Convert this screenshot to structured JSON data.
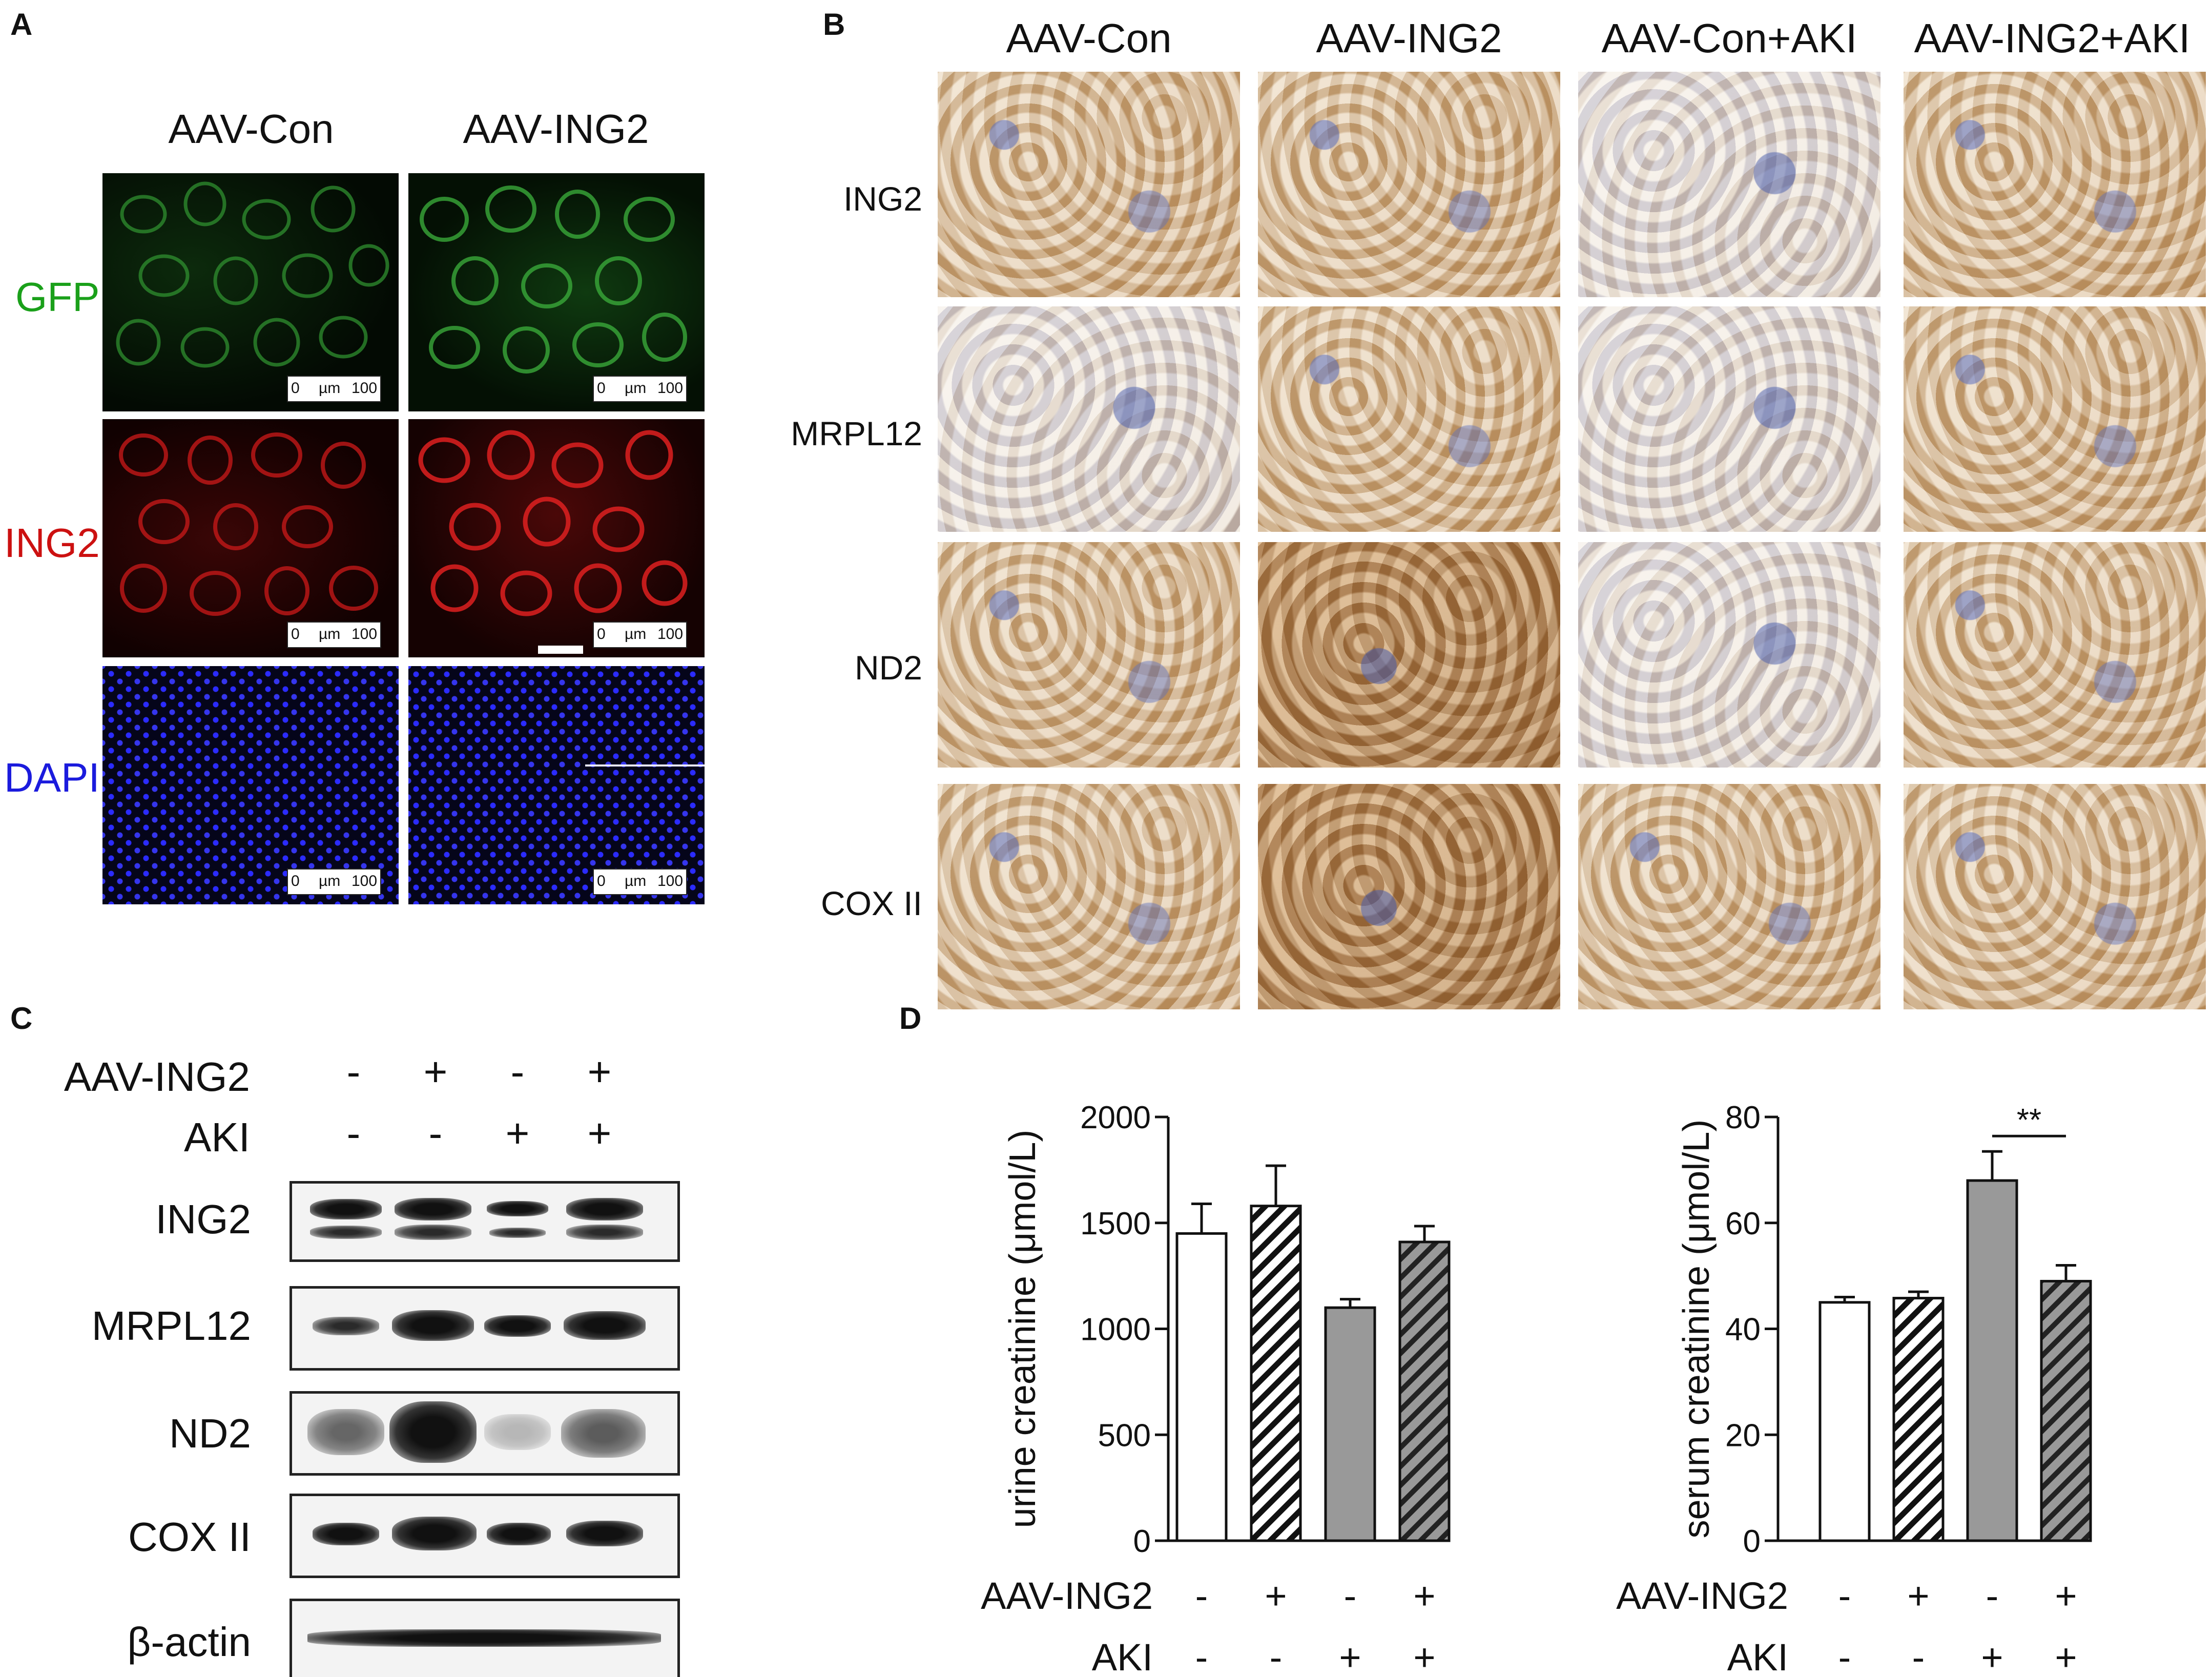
{
  "panel_A": {
    "letter": "A",
    "columns": [
      "AAV-Con",
      "AAV-ING2"
    ],
    "rows": [
      {
        "label": "GFP",
        "color": "#1aa01a"
      },
      {
        "label": "ING2",
        "color": "#cc1111"
      },
      {
        "label": "DAPI",
        "color": "#1b1bdd"
      }
    ],
    "scale_bar": {
      "start": "0",
      "unit": "µm",
      "end": "100"
    }
  },
  "panel_B": {
    "letter": "B",
    "columns": [
      "AAV-Con",
      "AAV-ING2",
      "AAV-Con+AKI",
      "AAV-ING2+AKI"
    ],
    "rows": [
      "ING2",
      "MRPL12",
      "ND2",
      "COX II"
    ]
  },
  "panel_C": {
    "letter": "C",
    "treatment_rows": [
      {
        "label": "AAV-ING2",
        "signs": [
          "-",
          "+",
          "-",
          "+"
        ]
      },
      {
        "label": "AKI",
        "signs": [
          "-",
          "-",
          "+",
          "+"
        ]
      }
    ],
    "blots": [
      "ING2",
      "MRPL12",
      "ND2",
      "COX II",
      "β-actin"
    ]
  },
  "panel_D": {
    "letter": "D",
    "significance": "**"
  },
  "chart_data": [
    {
      "type": "bar",
      "ylabel": "urine creatinine (μmol/L)",
      "ylim": [
        0,
        2000
      ],
      "yticks": [
        "0",
        "500",
        "1000",
        "1500",
        "2000"
      ],
      "values": [
        1450,
        1580,
        1100,
        1410
      ],
      "errors": [
        140,
        190,
        40,
        75
      ],
      "bar_styles": [
        "white",
        "hatched-white",
        "gray",
        "hatched-gray"
      ],
      "treatment_rows": [
        {
          "label": "AAV-ING2",
          "signs": [
            "-",
            "+",
            "-",
            "+"
          ]
        },
        {
          "label": "AKI",
          "signs": [
            "-",
            "-",
            "+",
            "+"
          ]
        }
      ]
    },
    {
      "type": "bar",
      "ylabel": "serum creatinine (μmol/L)",
      "ylim": [
        0,
        80
      ],
      "yticks": [
        "0",
        "20",
        "40",
        "60",
        "80"
      ],
      "values": [
        45,
        45.8,
        68,
        49
      ],
      "errors": [
        1,
        1.2,
        5.5,
        3
      ],
      "bar_styles": [
        "white",
        "hatched-white",
        "gray",
        "hatched-gray"
      ],
      "significance": {
        "between": [
          2,
          3
        ],
        "label": "**"
      },
      "treatment_rows": [
        {
          "label": "AAV-ING2",
          "signs": [
            "-",
            "+",
            "-",
            "+"
          ]
        },
        {
          "label": "AKI",
          "signs": [
            "-",
            "-",
            "+",
            "+"
          ]
        }
      ]
    }
  ]
}
